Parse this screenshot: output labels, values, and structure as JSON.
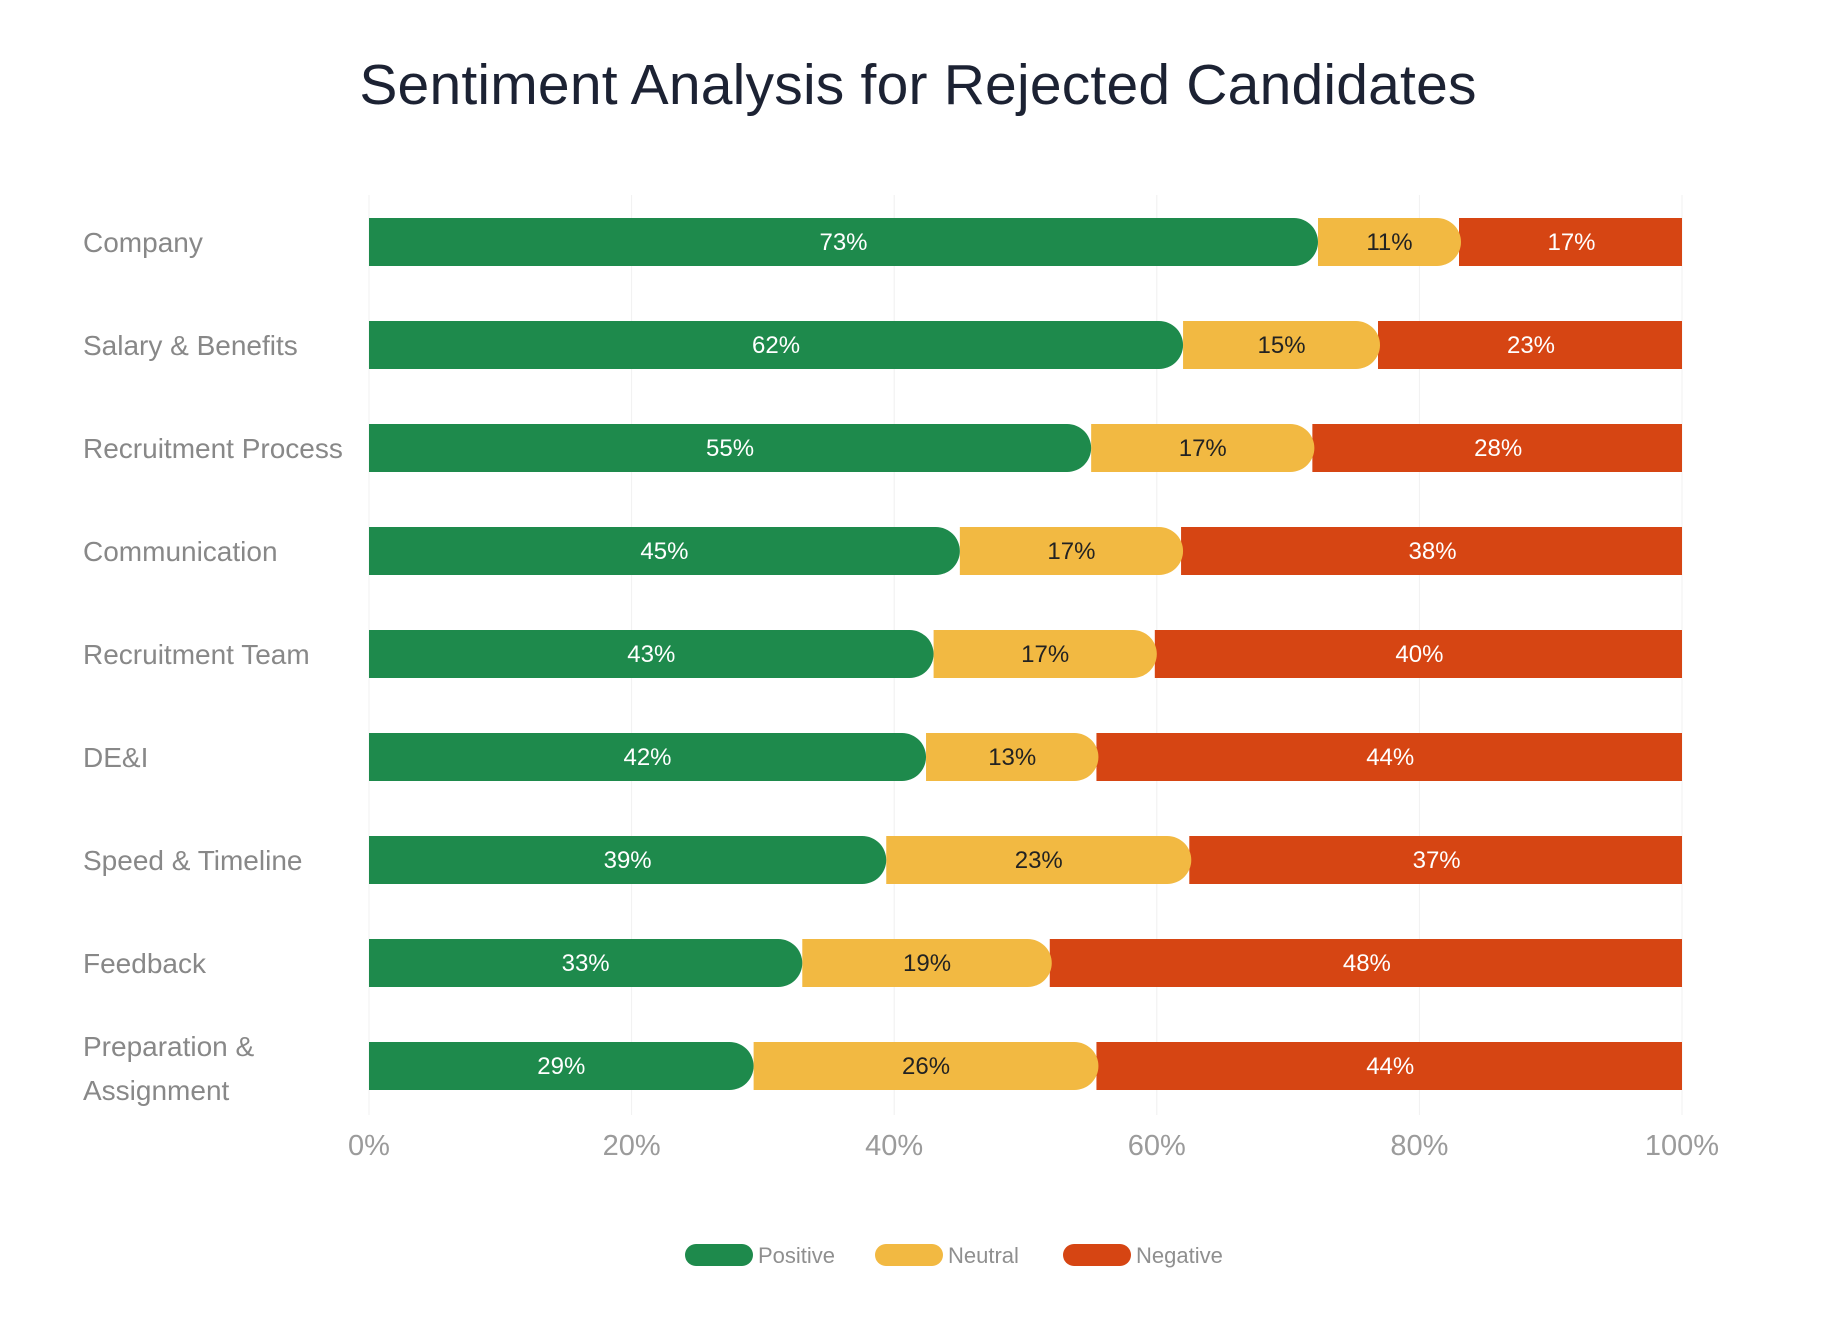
{
  "chart_data": {
    "type": "bar",
    "orientation": "horizontal",
    "stacked": true,
    "title": "Sentiment Analysis for Rejected Candidates",
    "categories": [
      "Company",
      "Salary & Benefits",
      "Recruitment Process",
      "Communication",
      "Recruitment Team",
      "DE&I",
      "Speed & Timeline",
      "Feedback",
      "Preparation & Assignment"
    ],
    "series": [
      {
        "name": "Positive",
        "color": "#1e8a4c",
        "label_color": "#ffffff",
        "values": [
          73,
          62,
          55,
          45,
          43,
          42,
          39,
          33,
          29
        ]
      },
      {
        "name": "Neutral",
        "color": "#f2b942",
        "label_color": "#222222",
        "values": [
          11,
          15,
          17,
          17,
          17,
          13,
          23,
          19,
          26
        ]
      },
      {
        "name": "Negative",
        "color": "#d64513",
        "label_color": "#ffffff",
        "values": [
          17,
          23,
          28,
          38,
          40,
          44,
          37,
          48,
          44
        ]
      }
    ],
    "xlim": [
      0,
      100
    ],
    "xticks": [
      "0%",
      "20%",
      "40%",
      "60%",
      "80%",
      "100%"
    ],
    "grid": true,
    "legend_position": "bottom"
  }
}
